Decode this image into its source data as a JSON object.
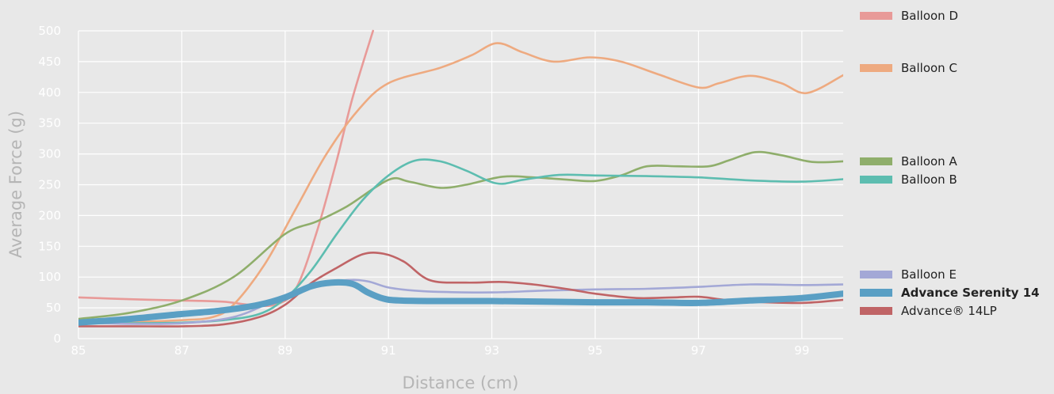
{
  "chart_data": {
    "type": "line",
    "xlabel": "Distance (cm)",
    "ylabel": "Average Force (g)",
    "xlim": [
      85,
      99.8
    ],
    "ylim": [
      0,
      500
    ],
    "x_ticks": [
      "85",
      "87",
      "89",
      "91",
      "93",
      "95",
      "97",
      "99"
    ],
    "y_ticks": [
      "0",
      "50",
      "100",
      "150",
      "200",
      "250",
      "300",
      "350",
      "400",
      "450",
      "500"
    ],
    "grid": true,
    "legend_position": "right",
    "series": [
      {
        "name": "Balloon D",
        "color": "#e89a98",
        "highlight": false,
        "points": [
          [
            85,
            67
          ],
          [
            86,
            64
          ],
          [
            87,
            62
          ],
          [
            87.8,
            60
          ],
          [
            88.3,
            55
          ],
          [
            88.8,
            55
          ],
          [
            89.2,
            80
          ],
          [
            89.6,
            170
          ],
          [
            90.0,
            290
          ],
          [
            90.3,
            390
          ],
          [
            90.7,
            500
          ]
        ]
      },
      {
        "name": "Balloon C",
        "color": "#eeaa80",
        "highlight": false,
        "points": [
          [
            85,
            27
          ],
          [
            86,
            27
          ],
          [
            87,
            30
          ],
          [
            87.6,
            35
          ],
          [
            88.0,
            55
          ],
          [
            88.6,
            120
          ],
          [
            89.2,
            210
          ],
          [
            89.8,
            300
          ],
          [
            90.4,
            370
          ],
          [
            91.0,
            415
          ],
          [
            92.0,
            440
          ],
          [
            92.6,
            460
          ],
          [
            93.1,
            480
          ],
          [
            93.6,
            465
          ],
          [
            94.2,
            450
          ],
          [
            94.9,
            457
          ],
          [
            95.5,
            450
          ],
          [
            96.2,
            430
          ],
          [
            97.0,
            408
          ],
          [
            97.4,
            415
          ],
          [
            98.0,
            427
          ],
          [
            98.6,
            415
          ],
          [
            99.1,
            399
          ],
          [
            99.8,
            428
          ]
        ]
      },
      {
        "name": "Balloon A",
        "color": "#8fae6b",
        "highlight": false,
        "points": [
          [
            85,
            32
          ],
          [
            86,
            42
          ],
          [
            87,
            62
          ],
          [
            88,
            100
          ],
          [
            89,
            170
          ],
          [
            89.6,
            190
          ],
          [
            90.2,
            215
          ],
          [
            91.0,
            258
          ],
          [
            91.4,
            255
          ],
          [
            92.0,
            245
          ],
          [
            92.5,
            250
          ],
          [
            93.2,
            263
          ],
          [
            93.8,
            262
          ],
          [
            94.5,
            258
          ],
          [
            95.0,
            256
          ],
          [
            95.5,
            265
          ],
          [
            96.0,
            280
          ],
          [
            96.6,
            280
          ],
          [
            97.2,
            280
          ],
          [
            97.6,
            290
          ],
          [
            98.1,
            303
          ],
          [
            98.6,
            298
          ],
          [
            99.2,
            287
          ],
          [
            99.8,
            288
          ]
        ]
      },
      {
        "name": "Balloon B",
        "color": "#5dbdb0",
        "highlight": false,
        "points": [
          [
            85,
            25
          ],
          [
            86,
            25
          ],
          [
            87,
            26
          ],
          [
            87.8,
            30
          ],
          [
            88.5,
            40
          ],
          [
            89.0,
            65
          ],
          [
            89.5,
            110
          ],
          [
            90.0,
            170
          ],
          [
            90.5,
            225
          ],
          [
            91.0,
            265
          ],
          [
            91.5,
            289
          ],
          [
            92.0,
            288
          ],
          [
            92.5,
            273
          ],
          [
            93.1,
            252
          ],
          [
            93.6,
            258
          ],
          [
            94.3,
            266
          ],
          [
            95.0,
            265
          ],
          [
            96.0,
            264
          ],
          [
            97.0,
            262
          ],
          [
            98.0,
            257
          ],
          [
            99.0,
            255
          ],
          [
            99.8,
            259
          ]
        ]
      },
      {
        "name": "Balloon E",
        "color": "#a3a8d6",
        "highlight": false,
        "points": [
          [
            85,
            26
          ],
          [
            86,
            24
          ],
          [
            87,
            25
          ],
          [
            88,
            35
          ],
          [
            88.8,
            62
          ],
          [
            89.5,
            87
          ],
          [
            90.2,
            95
          ],
          [
            90.6,
            93
          ],
          [
            91.0,
            83
          ],
          [
            91.5,
            78
          ],
          [
            92.0,
            76
          ],
          [
            93.0,
            75
          ],
          [
            94.0,
            78
          ],
          [
            95.0,
            80
          ],
          [
            96.0,
            81
          ],
          [
            97.0,
            84
          ],
          [
            98.0,
            88
          ],
          [
            99.0,
            87
          ],
          [
            99.8,
            88
          ]
        ]
      },
      {
        "name": "Advance Serenity 14",
        "color": "#5a9fc4",
        "highlight": true,
        "points": [
          [
            85,
            26
          ],
          [
            86,
            32
          ],
          [
            87,
            40
          ],
          [
            87.8,
            46
          ],
          [
            88.5,
            55
          ],
          [
            89.0,
            67
          ],
          [
            89.5,
            85
          ],
          [
            89.9,
            91
          ],
          [
            90.3,
            89
          ],
          [
            90.6,
            75
          ],
          [
            90.9,
            65
          ],
          [
            91.2,
            62
          ],
          [
            92.0,
            61
          ],
          [
            93.0,
            61
          ],
          [
            94.0,
            60
          ],
          [
            95.0,
            59
          ],
          [
            96.0,
            59
          ],
          [
            97.0,
            58
          ],
          [
            98.0,
            62
          ],
          [
            99.0,
            66
          ],
          [
            99.8,
            73
          ]
        ]
      },
      {
        "name": "Advance® 14LP",
        "color": "#c06466",
        "highlight": false,
        "points": [
          [
            85,
            20
          ],
          [
            86,
            20
          ],
          [
            87,
            20
          ],
          [
            87.8,
            23
          ],
          [
            88.5,
            35
          ],
          [
            89.0,
            55
          ],
          [
            89.5,
            90
          ],
          [
            90.0,
            115
          ],
          [
            90.5,
            137
          ],
          [
            90.9,
            138
          ],
          [
            91.3,
            125
          ],
          [
            91.8,
            95
          ],
          [
            92.5,
            91
          ],
          [
            93.2,
            92
          ],
          [
            93.8,
            88
          ],
          [
            94.5,
            80
          ],
          [
            95.0,
            73
          ],
          [
            95.8,
            66
          ],
          [
            96.5,
            67
          ],
          [
            97.0,
            68
          ],
          [
            97.5,
            63
          ],
          [
            98.0,
            60
          ],
          [
            99.0,
            58
          ],
          [
            99.8,
            63
          ]
        ]
      }
    ],
    "legend": [
      {
        "label": "Balloon D",
        "color": "#e89a98",
        "highlight": false
      },
      {
        "label": "Balloon C",
        "color": "#eeaa80",
        "highlight": false
      },
      {
        "label": "Balloon A",
        "color": "#8fae6b",
        "highlight": false
      },
      {
        "label": "Balloon B",
        "color": "#5dbdb0",
        "highlight": false
      },
      {
        "label": "Balloon E",
        "color": "#a3a8d6",
        "highlight": false
      },
      {
        "label": "Advance Serenity 14",
        "color": "#5a9fc4",
        "highlight": true
      },
      {
        "label": "Advance® 14LP",
        "color": "#c06466",
        "highlight": false
      }
    ]
  }
}
